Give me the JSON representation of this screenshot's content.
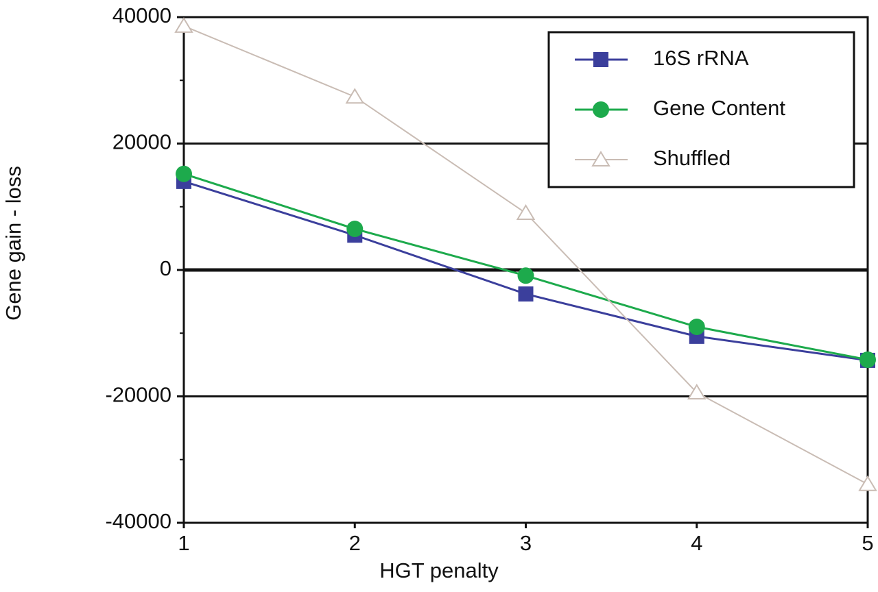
{
  "chart_data": {
    "type": "line",
    "x_label": "HGT penalty",
    "y_label": "Gene gain - loss",
    "x": [
      1,
      2,
      3,
      4,
      5
    ],
    "xlim": [
      1,
      5
    ],
    "xticks": [
      1,
      2,
      3,
      4,
      5
    ],
    "ylim": [
      -40000,
      40000
    ],
    "yticks": [
      40000,
      20000,
      0,
      -20000,
      -40000
    ],
    "minor_yticks": [
      30000,
      10000,
      -10000,
      -30000
    ],
    "grid": true,
    "legend": "upper right",
    "series": [
      {
        "name": "16S rRNA",
        "color": "#3b3f9c",
        "marker": "square",
        "values": [
          14000,
          5500,
          -3800,
          -10500,
          -14300
        ]
      },
      {
        "name": "Gene Content",
        "color": "#1daa4c",
        "marker": "circle",
        "values": [
          15200,
          6500,
          -900,
          -9000,
          -14200
        ]
      },
      {
        "name": "Shuffled",
        "color": "#c9bcb4",
        "marker": "triangle-open",
        "values": [
          38600,
          27400,
          9000,
          -19400,
          -33900
        ]
      }
    ]
  }
}
